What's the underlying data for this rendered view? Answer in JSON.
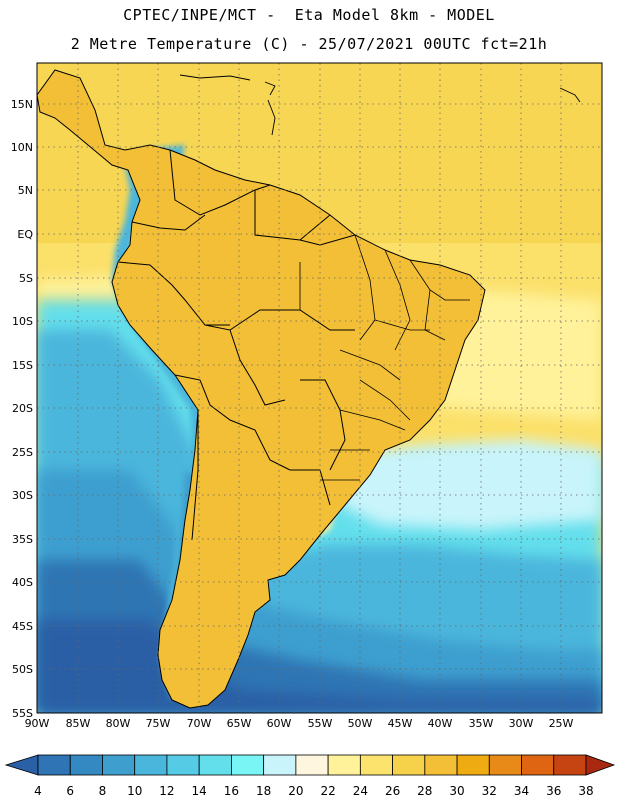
{
  "header": {
    "line1": "CPTEC/INPE/MCT -  Eta Model 8km - MODEL",
    "line2": "2 Metre Temperature (C) - 25/07/2021 00UTC fct=21h"
  },
  "map": {
    "region": "South America",
    "variable": "2 Metre Temperature",
    "unit": "C",
    "lon_range": [
      -90,
      -20
    ],
    "lat_range": [
      -55,
      20
    ],
    "lat_ticks": [
      "15N",
      "10N",
      "5N",
      "EQ",
      "5S",
      "10S",
      "15S",
      "20S",
      "25S",
      "30S",
      "35S",
      "40S",
      "45S",
      "50S",
      "55S"
    ],
    "lon_ticks": [
      "90W",
      "85W",
      "80W",
      "75W",
      "70W",
      "65W",
      "60W",
      "55W",
      "50W",
      "45W",
      "40W",
      "35W",
      "30W",
      "25W"
    ],
    "gridlines": "dotted",
    "borders": "country and state boundaries"
  },
  "colorbar": {
    "levels": [
      "4",
      "6",
      "8",
      "10",
      "12",
      "14",
      "16",
      "18",
      "20",
      "22",
      "24",
      "26",
      "28",
      "30",
      "32",
      "34",
      "36",
      "38"
    ],
    "colors": [
      "#2b5fa6",
      "#2f74b4",
      "#3589c2",
      "#3e9fcf",
      "#4bb6dc",
      "#56cbe5",
      "#63dfec",
      "#7af5f5",
      "#c9f4fb",
      "#fff6e0",
      "#fff29a",
      "#fbe36d",
      "#f6d24b",
      "#f2bf36",
      "#eeab12",
      "#e88a17",
      "#df6512",
      "#c64312",
      "#a82810"
    ],
    "extend": "both"
  }
}
